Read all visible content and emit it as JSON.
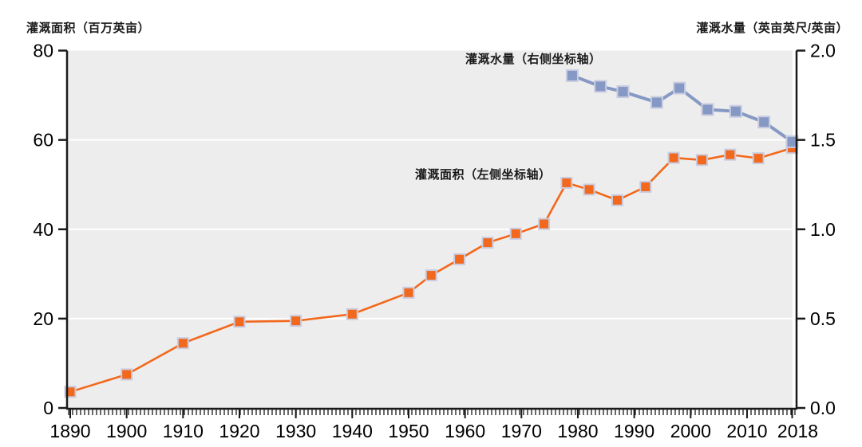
{
  "chart_data": {
    "type": "line",
    "title": "",
    "left_axis": {
      "label": "灌溉面积（百万英亩）",
      "tick_values": [
        0,
        20,
        40,
        60,
        80
      ],
      "tick_labels": [
        "0",
        "20",
        "40",
        "60",
        "80"
      ],
      "range": [
        0,
        80
      ]
    },
    "right_axis": {
      "label": "灌溉水量（英亩英尺/英亩）",
      "tick_values": [
        0,
        0.5,
        1.0,
        1.5,
        2.0
      ],
      "tick_labels": [
        "0.0",
        "0.5",
        "1.0",
        "1.5",
        "2.0"
      ],
      "range": [
        0,
        2.0
      ]
    },
    "x_axis": {
      "range": [
        1890,
        2018
      ],
      "major_tick_values": [
        1890,
        1900,
        1910,
        1920,
        1930,
        1940,
        1950,
        1960,
        1970,
        1980,
        1990,
        2000,
        2010,
        2018
      ],
      "major_tick_labels": [
        "1890",
        "1900",
        "1910",
        "1920",
        "1930",
        "1940",
        "1950",
        "1960",
        "1970",
        "1980",
        "1990",
        "2000",
        "2010",
        "2018"
      ]
    },
    "grid": "horizontal-white-lines",
    "legend_position": "in-plot-text-labels",
    "series": [
      {
        "name": "灌溉面积（左侧坐标轴）",
        "axis": "left",
        "color": "#F2681C",
        "marker": "square",
        "marker_border": "#C9CCE0",
        "points": [
          [
            1890,
            3.6
          ],
          [
            1900,
            7.5
          ],
          [
            1910,
            14.5
          ],
          [
            1920,
            19.3
          ],
          [
            1930,
            19.5
          ],
          [
            1940,
            21.0
          ],
          [
            1950,
            25.8
          ],
          [
            1954,
            29.7
          ],
          [
            1959,
            33.3
          ],
          [
            1964,
            37.0
          ],
          [
            1969,
            39.0
          ],
          [
            1974,
            41.2
          ],
          [
            1978,
            50.4
          ],
          [
            1982,
            48.9
          ],
          [
            1987,
            46.5
          ],
          [
            1992,
            49.5
          ],
          [
            1997,
            56.0
          ],
          [
            2002,
            55.5
          ],
          [
            2007,
            56.7
          ],
          [
            2012,
            55.9
          ],
          [
            2018,
            58.2
          ]
        ]
      },
      {
        "name": "灌溉水量（右侧坐标轴）",
        "axis": "right",
        "color": "#8699C4",
        "marker": "square",
        "marker_border": "#C9CCE0",
        "points": [
          [
            1979,
            1.86
          ],
          [
            1984,
            1.8
          ],
          [
            1988,
            1.77
          ],
          [
            1994,
            1.71
          ],
          [
            1998,
            1.79
          ],
          [
            2003,
            1.67
          ],
          [
            2008,
            1.66
          ],
          [
            2013,
            1.6
          ],
          [
            2018,
            1.49
          ]
        ]
      }
    ],
    "colors": {
      "plot_background": "#EDEDED",
      "gridline": "#FFFFFF",
      "axis": "#1A1A1A",
      "tick_label": "#000000"
    }
  }
}
